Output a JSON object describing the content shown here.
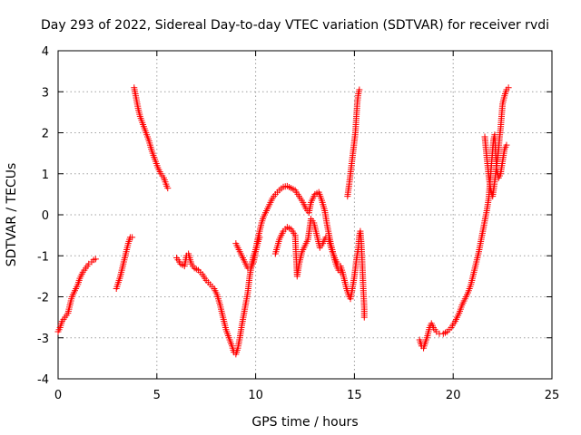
{
  "chart_data": {
    "type": "scatter",
    "title": "Day 293 of 2022, Sidereal Day-to-day VTEC variation (SDTVAR) for receiver rvdi",
    "xlabel": "GPS time / hours",
    "ylabel": "SDTVAR / TECUs",
    "xlim": [
      0,
      25
    ],
    "ylim": [
      -4,
      4
    ],
    "xticks": [
      0,
      5,
      10,
      15,
      20,
      25
    ],
    "yticks": [
      -4,
      -3,
      -2,
      -1,
      0,
      1,
      2,
      3,
      4
    ],
    "grid": true,
    "marker": "+",
    "marker_color": "#ff0000",
    "segments": [
      {
        "name": "segment-1",
        "points": [
          [
            0.0,
            -2.85
          ],
          [
            0.1,
            -2.75
          ],
          [
            0.2,
            -2.6
          ],
          [
            0.35,
            -2.5
          ],
          [
            0.5,
            -2.4
          ],
          [
            0.6,
            -2.2
          ],
          [
            0.7,
            -2.0
          ],
          [
            0.85,
            -1.85
          ],
          [
            1.0,
            -1.7
          ],
          [
            1.1,
            -1.55
          ],
          [
            1.25,
            -1.4
          ],
          [
            1.4,
            -1.3
          ],
          [
            1.55,
            -1.2
          ],
          [
            1.7,
            -1.15
          ],
          [
            1.8,
            -1.1
          ],
          [
            1.9,
            -1.08
          ]
        ]
      },
      {
        "name": "segment-2",
        "points": [
          [
            2.95,
            -1.8
          ],
          [
            3.05,
            -1.65
          ],
          [
            3.15,
            -1.5
          ],
          [
            3.25,
            -1.3
          ],
          [
            3.35,
            -1.1
          ],
          [
            3.45,
            -0.9
          ],
          [
            3.55,
            -0.7
          ],
          [
            3.65,
            -0.55
          ],
          [
            3.75,
            -0.55
          ]
        ]
      },
      {
        "name": "segment-3",
        "points": [
          [
            3.85,
            3.1
          ],
          [
            3.95,
            2.85
          ],
          [
            4.05,
            2.6
          ],
          [
            4.15,
            2.4
          ],
          [
            4.3,
            2.2
          ],
          [
            4.45,
            2.0
          ],
          [
            4.6,
            1.8
          ],
          [
            4.75,
            1.55
          ],
          [
            4.9,
            1.35
          ],
          [
            5.05,
            1.15
          ],
          [
            5.2,
            1.0
          ],
          [
            5.35,
            0.9
          ],
          [
            5.5,
            0.7
          ],
          [
            5.55,
            0.65
          ]
        ]
      },
      {
        "name": "segment-4",
        "points": [
          [
            6.0,
            -1.05
          ],
          [
            6.2,
            -1.2
          ],
          [
            6.4,
            -1.25
          ],
          [
            6.5,
            -1.0
          ],
          [
            6.6,
            -0.95
          ],
          [
            6.75,
            -1.2
          ],
          [
            6.9,
            -1.3
          ],
          [
            7.1,
            -1.35
          ],
          [
            7.3,
            -1.45
          ],
          [
            7.5,
            -1.6
          ],
          [
            7.7,
            -1.7
          ],
          [
            7.9,
            -1.8
          ],
          [
            8.05,
            -1.95
          ],
          [
            8.2,
            -2.2
          ],
          [
            8.35,
            -2.5
          ],
          [
            8.5,
            -2.8
          ],
          [
            8.65,
            -3.0
          ],
          [
            8.8,
            -3.2
          ],
          [
            8.9,
            -3.35
          ],
          [
            9.0,
            -3.4
          ],
          [
            9.1,
            -3.25
          ],
          [
            9.2,
            -3.0
          ],
          [
            9.3,
            -2.7
          ],
          [
            9.45,
            -2.3
          ],
          [
            9.6,
            -1.9
          ],
          [
            9.7,
            -1.5
          ],
          [
            9.8,
            -1.2
          ],
          [
            9.9,
            -1.0
          ],
          [
            10.0,
            -0.85
          ],
          [
            10.1,
            -0.6
          ],
          [
            10.2,
            -0.4
          ],
          [
            10.3,
            -0.2
          ],
          [
            10.4,
            -0.05
          ],
          [
            10.55,
            0.1
          ],
          [
            10.7,
            0.25
          ],
          [
            10.85,
            0.4
          ],
          [
            11.0,
            0.5
          ],
          [
            11.2,
            0.6
          ],
          [
            11.4,
            0.68
          ],
          [
            11.6,
            0.7
          ],
          [
            11.8,
            0.65
          ],
          [
            12.0,
            0.6
          ],
          [
            12.2,
            0.45
          ],
          [
            12.4,
            0.3
          ],
          [
            12.55,
            0.15
          ],
          [
            12.7,
            0.05
          ],
          [
            12.8,
            0.3
          ],
          [
            13.0,
            0.5
          ],
          [
            13.2,
            0.55
          ],
          [
            13.35,
            0.35
          ],
          [
            13.5,
            0.1
          ],
          [
            13.6,
            -0.2
          ],
          [
            13.7,
            -0.45
          ],
          [
            13.8,
            -0.7
          ],
          [
            13.9,
            -0.9
          ],
          [
            14.0,
            -1.1
          ],
          [
            14.1,
            -1.25
          ],
          [
            14.2,
            -1.35
          ],
          [
            14.3,
            -1.4
          ]
        ]
      },
      {
        "name": "segment-5",
        "points": [
          [
            9.0,
            -0.7
          ],
          [
            9.15,
            -0.85
          ],
          [
            9.3,
            -1.0
          ],
          [
            9.45,
            -1.15
          ],
          [
            9.6,
            -1.3
          ],
          [
            9.75,
            -1.3
          ],
          [
            9.9,
            -1.15
          ],
          [
            10.0,
            -0.9
          ],
          [
            10.1,
            -0.7
          ],
          [
            10.2,
            -0.55
          ]
        ]
      },
      {
        "name": "segment-6",
        "points": [
          [
            11.0,
            -0.95
          ],
          [
            11.2,
            -0.6
          ],
          [
            11.4,
            -0.4
          ],
          [
            11.6,
            -0.3
          ],
          [
            11.8,
            -0.35
          ],
          [
            12.0,
            -0.5
          ],
          [
            12.05,
            -1.0
          ],
          [
            12.1,
            -1.5
          ],
          [
            12.2,
            -1.2
          ],
          [
            12.35,
            -0.9
          ],
          [
            12.5,
            -0.75
          ],
          [
            12.65,
            -0.6
          ],
          [
            12.8,
            -0.1
          ],
          [
            12.95,
            -0.2
          ],
          [
            13.1,
            -0.5
          ],
          [
            13.25,
            -0.8
          ],
          [
            13.4,
            -0.7
          ],
          [
            13.55,
            -0.55
          ],
          [
            13.7,
            -0.6
          ],
          [
            13.85,
            -0.85
          ],
          [
            14.0,
            -1.05
          ],
          [
            14.15,
            -1.2
          ],
          [
            14.3,
            -1.25
          ],
          [
            14.4,
            -1.4
          ],
          [
            14.5,
            -1.6
          ],
          [
            14.6,
            -1.8
          ],
          [
            14.7,
            -1.95
          ],
          [
            14.8,
            -2.05
          ],
          [
            14.9,
            -1.8
          ],
          [
            15.0,
            -1.5
          ],
          [
            15.1,
            -1.1
          ],
          [
            15.2,
            -0.8
          ],
          [
            15.25,
            -0.5
          ],
          [
            15.3,
            -0.4
          ],
          [
            15.35,
            -0.7
          ],
          [
            15.4,
            -1.2
          ],
          [
            15.45,
            -1.8
          ],
          [
            15.5,
            -2.3
          ],
          [
            15.5,
            -2.5
          ]
        ]
      },
      {
        "name": "segment-7",
        "points": [
          [
            14.65,
            0.45
          ],
          [
            14.75,
            0.8
          ],
          [
            14.85,
            1.2
          ],
          [
            14.95,
            1.6
          ],
          [
            15.05,
            2.0
          ],
          [
            15.1,
            2.4
          ],
          [
            15.15,
            2.75
          ],
          [
            15.2,
            2.95
          ],
          [
            15.25,
            3.05
          ]
        ]
      },
      {
        "name": "segment-8",
        "points": [
          [
            18.3,
            -3.05
          ],
          [
            18.4,
            -3.2
          ],
          [
            18.5,
            -3.25
          ],
          [
            18.6,
            -3.1
          ],
          [
            18.7,
            -2.95
          ],
          [
            18.8,
            -2.75
          ],
          [
            18.9,
            -2.65
          ],
          [
            19.0,
            -2.75
          ],
          [
            19.15,
            -2.85
          ],
          [
            19.3,
            -2.9
          ],
          [
            19.5,
            -2.9
          ],
          [
            19.7,
            -2.85
          ],
          [
            19.9,
            -2.75
          ],
          [
            20.1,
            -2.6
          ],
          [
            20.3,
            -2.4
          ],
          [
            20.45,
            -2.2
          ],
          [
            20.6,
            -2.05
          ],
          [
            20.75,
            -1.9
          ],
          [
            20.9,
            -1.7
          ],
          [
            21.0,
            -1.5
          ],
          [
            21.1,
            -1.3
          ],
          [
            21.2,
            -1.1
          ],
          [
            21.3,
            -0.9
          ],
          [
            21.4,
            -0.65
          ],
          [
            21.5,
            -0.4
          ],
          [
            21.6,
            -0.15
          ],
          [
            21.7,
            0.1
          ],
          [
            21.8,
            0.4
          ],
          [
            21.85,
            0.7
          ],
          [
            21.9,
            1.0
          ],
          [
            21.95,
            1.3
          ],
          [
            22.0,
            1.6
          ],
          [
            22.05,
            1.85
          ],
          [
            22.1,
            1.95
          ],
          [
            22.15,
            1.5
          ],
          [
            22.2,
            1.1
          ],
          [
            22.3,
            0.9
          ],
          [
            22.4,
            1.0
          ],
          [
            22.5,
            1.3
          ],
          [
            22.6,
            1.6
          ],
          [
            22.7,
            1.7
          ]
        ]
      },
      {
        "name": "segment-9",
        "points": [
          [
            21.6,
            1.9
          ],
          [
            21.7,
            1.4
          ],
          [
            21.8,
            0.95
          ],
          [
            21.9,
            0.6
          ],
          [
            22.0,
            0.45
          ],
          [
            22.1,
            0.8
          ],
          [
            22.2,
            1.2
          ],
          [
            22.3,
            1.6
          ],
          [
            22.35,
            1.9
          ],
          [
            22.4,
            2.1
          ],
          [
            22.45,
            2.4
          ],
          [
            22.5,
            2.7
          ],
          [
            22.6,
            2.9
          ],
          [
            22.7,
            3.05
          ],
          [
            22.8,
            3.1
          ]
        ]
      }
    ]
  }
}
